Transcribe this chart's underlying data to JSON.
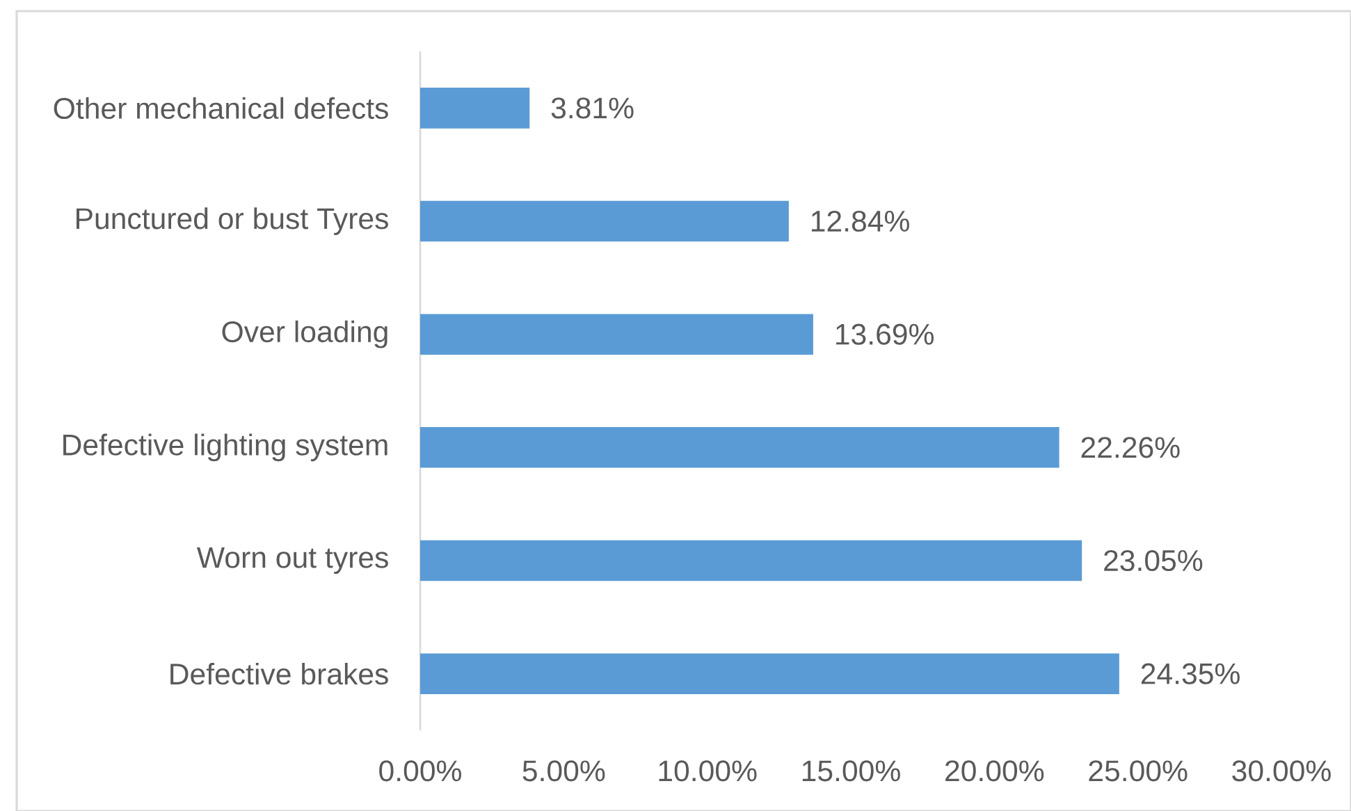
{
  "chart_data": {
    "type": "bar",
    "orientation": "horizontal",
    "categories": [
      "Other mechanical defects",
      "Punctured or bust Tyres",
      "Over loading",
      "Defective lighting system",
      "Worn out tyres",
      "Defective brakes"
    ],
    "values": [
      3.81,
      12.84,
      13.69,
      22.26,
      23.05,
      24.35
    ],
    "value_labels": [
      "3.81%",
      "12.84%",
      "13.69%",
      "22.26%",
      "23.05%",
      "24.35%"
    ],
    "color": "#5b9bd5",
    "xlim": [
      0,
      30
    ],
    "xticks": [
      {
        "value": 0,
        "label": "0.00%"
      },
      {
        "value": 5,
        "label": "5.00%"
      },
      {
        "value": 10,
        "label": "10.00%"
      },
      {
        "value": 15,
        "label": "15.00%"
      },
      {
        "value": 20,
        "label": "20.00%"
      },
      {
        "value": 25,
        "label": "25.00%"
      },
      {
        "value": 30,
        "label": "30.00%"
      }
    ]
  }
}
